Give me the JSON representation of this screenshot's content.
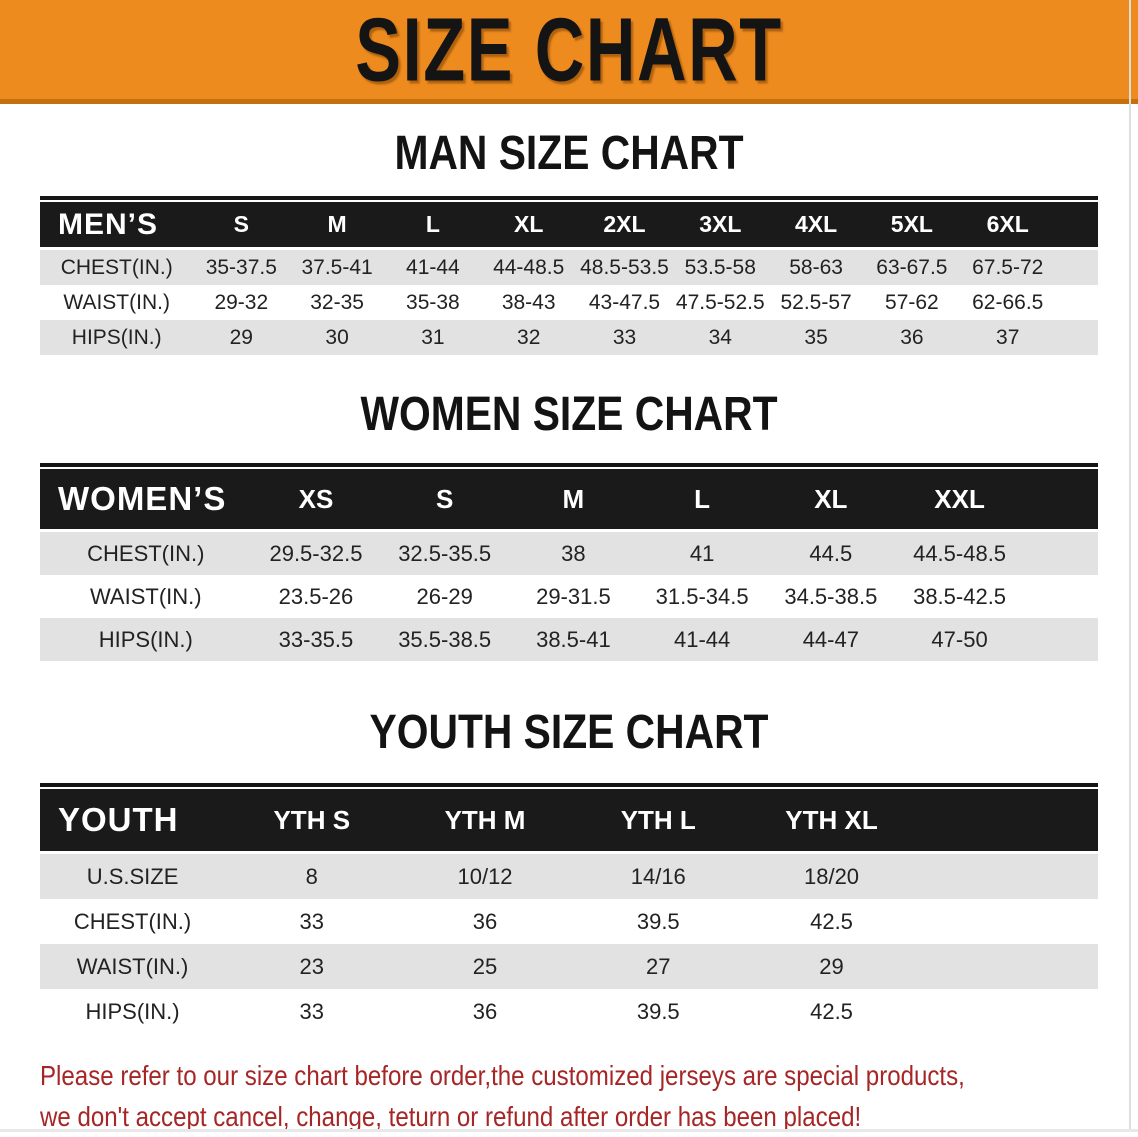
{
  "banner": {
    "title": "SIZE CHART"
  },
  "colors": {
    "banner_bg": "#EE8B1F",
    "banner_edge": "#C4700F",
    "header_bar": "#1A1A1A",
    "row_shaded": "#E2E2E2",
    "note_text": "#A62626"
  },
  "tables": [
    {
      "id": "men",
      "heading": "MAN SIZE CHART",
      "label": "MEN’S",
      "columns": [
        "S",
        "M",
        "L",
        "XL",
        "2XL",
        "3XL",
        "4XL",
        "5XL",
        "6XL"
      ],
      "rows": [
        {
          "label": "CHEST(IN.)",
          "shaded": true,
          "values": [
            "35-37.5",
            "37.5-41",
            "41-44",
            "44-48.5",
            "48.5-53.5",
            "53.5-58",
            "58-63",
            "63-67.5",
            "67.5-72"
          ]
        },
        {
          "label": "WAIST(IN.)",
          "shaded": false,
          "values": [
            "29-32",
            "32-35",
            "35-38",
            "38-43",
            "43-47.5",
            "47.5-52.5",
            "52.5-57",
            "57-62",
            "62-66.5"
          ]
        },
        {
          "label": "HIPS(IN.)",
          "shaded": true,
          "values": [
            "29",
            "30",
            "31",
            "32",
            "33",
            "34",
            "35",
            "36",
            "37"
          ]
        }
      ]
    },
    {
      "id": "women",
      "heading": "WOMEN SIZE CHART",
      "label": "WOMEN’S",
      "columns": [
        "XS",
        "S",
        "M",
        "L",
        "XL",
        "XXL"
      ],
      "rows": [
        {
          "label": "CHEST(IN.)",
          "shaded": true,
          "values": [
            "29.5-32.5",
            "32.5-35.5",
            "38",
            "41",
            "44.5",
            "44.5-48.5"
          ]
        },
        {
          "label": "WAIST(IN.)",
          "shaded": false,
          "values": [
            "23.5-26",
            "26-29",
            "29-31.5",
            "31.5-34.5",
            "34.5-38.5",
            "38.5-42.5"
          ]
        },
        {
          "label": "HIPS(IN.)",
          "shaded": true,
          "values": [
            "33-35.5",
            "35.5-38.5",
            "38.5-41",
            "41-44",
            "44-47",
            "47-50"
          ]
        }
      ]
    },
    {
      "id": "youth",
      "heading": "YOUTH SIZE CHART",
      "label": "YOUTH",
      "columns": [
        "YTH S",
        "YTH M",
        "YTH L",
        "YTH XL"
      ],
      "rows": [
        {
          "label": "U.S.SIZE",
          "shaded": true,
          "values": [
            "8",
            "10/12",
            "14/16",
            "18/20"
          ]
        },
        {
          "label": "CHEST(IN.)",
          "shaded": false,
          "values": [
            "33",
            "36",
            "39.5",
            "42.5"
          ]
        },
        {
          "label": "WAIST(IN.)",
          "shaded": true,
          "values": [
            "23",
            "25",
            "27",
            "29"
          ]
        },
        {
          "label": "HIPS(IN.)",
          "shaded": false,
          "values": [
            "33",
            "36",
            "39.5",
            "42.5"
          ]
        }
      ]
    }
  ],
  "footer": {
    "line1": "Please refer to our size chart before order,the customized jerseys are special products,",
    "line2": "we don't accept cancel, change, teturn or refund after order has been placed!"
  }
}
